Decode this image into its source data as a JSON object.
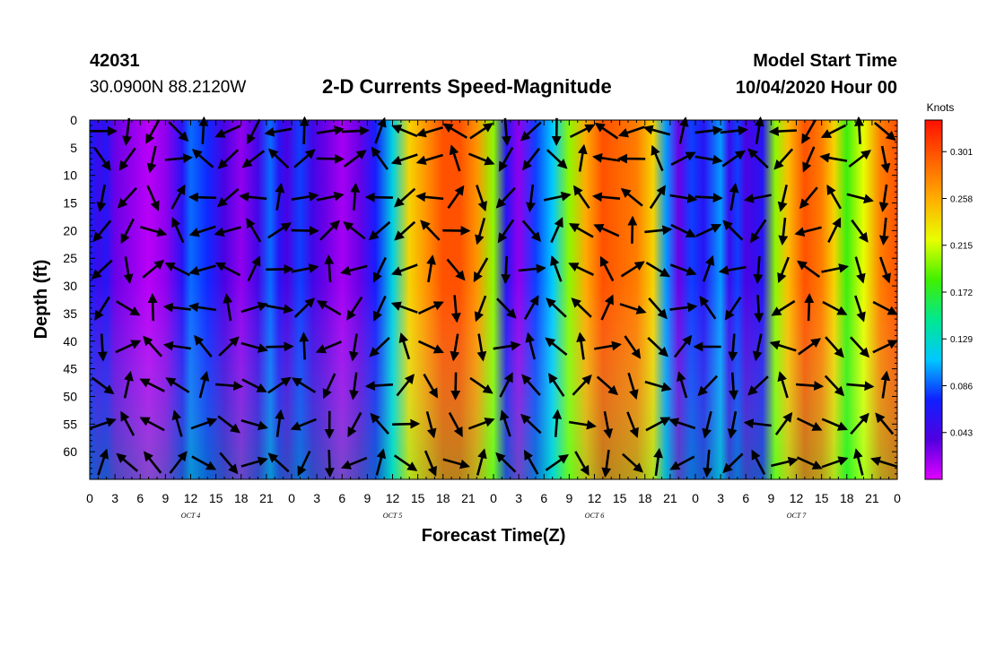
{
  "header": {
    "station_id": "42031",
    "coords": "30.0900N 88.2120W",
    "title": "2-D Currents Speed-Magnitude",
    "model_start_label": "Model Start Time",
    "model_start_value": "10/04/2020 Hour 00"
  },
  "chart_data": {
    "type": "heatmap",
    "title": "2-D Currents Speed-Magnitude",
    "xlabel": "Forecast Time(Z)",
    "ylabel": "Depth (ft)",
    "x_tick_labels": [
      "0",
      "3",
      "6",
      "9",
      "12",
      "15",
      "18",
      "21",
      "0",
      "3",
      "6",
      "9",
      "12",
      "15",
      "18",
      "21",
      "0",
      "3",
      "6",
      "9",
      "12",
      "15",
      "18",
      "21",
      "0",
      "3",
      "6",
      "9",
      "12",
      "15",
      "18",
      "21",
      "0"
    ],
    "x_range_hours": [
      0,
      96
    ],
    "date_labels": [
      {
        "label": "OCT 4",
        "hour": 12
      },
      {
        "label": "OCT 5",
        "hour": 36
      },
      {
        "label": "OCT 6",
        "hour": 60
      },
      {
        "label": "OCT 7",
        "hour": 84
      }
    ],
    "y_tick_labels": [
      "0",
      "5",
      "10",
      "15",
      "20",
      "25",
      "30",
      "35",
      "40",
      "45",
      "50",
      "55",
      "60"
    ],
    "y_range_ft": [
      0,
      65
    ],
    "y_inverted": true,
    "colorbar": {
      "title": "Knots",
      "labels": [
        "0.301",
        "0.258",
        "0.215",
        "0.172",
        "0.129",
        "0.086",
        "0.043"
      ],
      "values": [
        0.301,
        0.258,
        0.215,
        0.172,
        0.129,
        0.086,
        0.043
      ],
      "range": [
        0.0,
        0.33
      ],
      "colors": [
        "#e000ff",
        "#5000e0",
        "#1020ff",
        "#00c8ff",
        "#00e890",
        "#40f000",
        "#e8ff00",
        "#ffb000",
        "#ff6000",
        "#ff1000"
      ]
    },
    "arrow_hours": [
      1.5,
      4.5,
      7.5,
      10.5,
      13.5,
      16.5,
      19.5,
      22.5,
      25.5,
      28.5,
      31.5,
      34.5,
      37.5,
      40.5,
      43.5,
      46.5,
      49.5,
      52.5,
      55.5,
      58.5,
      61.5,
      64.5,
      67.5,
      70.5,
      73.5,
      76.5,
      79.5,
      82.5,
      85.5,
      88.5,
      91.5,
      94.5
    ],
    "arrow_depths_ft": [
      2,
      7,
      14,
      20,
      27,
      34,
      41,
      48,
      55,
      62
    ],
    "speed_profile_by_hour": [
      [
        0,
        0.07
      ],
      [
        1,
        0.05
      ],
      [
        2,
        0.06
      ],
      [
        3,
        0.03
      ],
      [
        5,
        0.02
      ],
      [
        7,
        0.01
      ],
      [
        9,
        0.02
      ],
      [
        11,
        0.06
      ],
      [
        12,
        0.09
      ],
      [
        14,
        0.075
      ],
      [
        16,
        0.04
      ],
      [
        18,
        0.02
      ],
      [
        20,
        0.045
      ],
      [
        21.5,
        0.09
      ],
      [
        22.5,
        0.06
      ],
      [
        23.5,
        0.04
      ],
      [
        25,
        0.08
      ],
      [
        26.5,
        0.045
      ],
      [
        28,
        0.03
      ],
      [
        30,
        0.015
      ],
      [
        32,
        0.03
      ],
      [
        34,
        0.07
      ],
      [
        36,
        0.12
      ],
      [
        38,
        0.24
      ],
      [
        40,
        0.27
      ],
      [
        42,
        0.3
      ],
      [
        44,
        0.3
      ],
      [
        46,
        0.27
      ],
      [
        48,
        0.2
      ],
      [
        49.5,
        0.06
      ],
      [
        51,
        0.02
      ],
      [
        53,
        0.08
      ],
      [
        55,
        0.11
      ],
      [
        57,
        0.2
      ],
      [
        59,
        0.26
      ],
      [
        61,
        0.3
      ],
      [
        63,
        0.29
      ],
      [
        65,
        0.28
      ],
      [
        67,
        0.24
      ],
      [
        68.5,
        0.1
      ],
      [
        70,
        0.03
      ],
      [
        71.5,
        0.08
      ],
      [
        73,
        0.06
      ],
      [
        75,
        0.1
      ],
      [
        76,
        0.05
      ],
      [
        77,
        0.08
      ],
      [
        78,
        0.04
      ],
      [
        80,
        0.06
      ],
      [
        81.5,
        0.2
      ],
      [
        83,
        0.25
      ],
      [
        85,
        0.3
      ],
      [
        87,
        0.28
      ],
      [
        88.5,
        0.24
      ],
      [
        90,
        0.18
      ],
      [
        92,
        0.22
      ],
      [
        94,
        0.28
      ],
      [
        96,
        0.3
      ]
    ]
  }
}
